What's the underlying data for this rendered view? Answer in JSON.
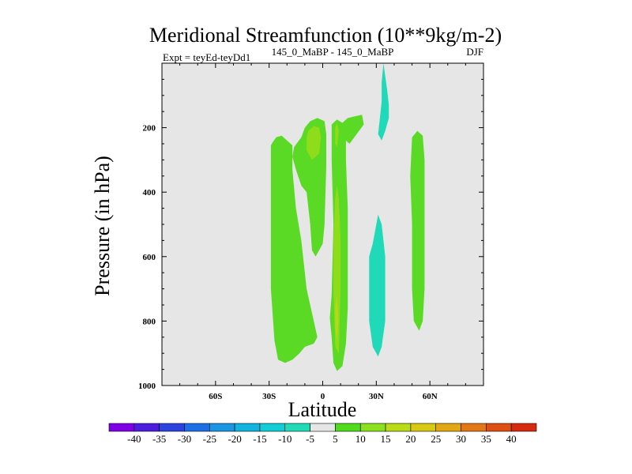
{
  "chart_data": {
    "type": "contour",
    "title": "Meridional Streamfunction (10**9kg/m-2)",
    "subtitle_left": "Expt = teyEd-teyDd1",
    "subtitle_center": "145_0_MaBP - 145_0_MaBP",
    "subtitle_right": "DJF",
    "xlabel": "Latitude",
    "ylabel": "Pressure (in hPa)",
    "xlim": [
      -90,
      90
    ],
    "ylim": [
      1000,
      0
    ],
    "x_ticks": [
      {
        "value": -60,
        "label": "60S"
      },
      {
        "value": -30,
        "label": "30S"
      },
      {
        "value": 0,
        "label": "0"
      },
      {
        "value": 30,
        "label": "30N"
      },
      {
        "value": 60,
        "label": "60N"
      }
    ],
    "y_ticks": [
      {
        "value": 200,
        "label": "200"
      },
      {
        "value": 400,
        "label": "400"
      },
      {
        "value": 600,
        "label": "600"
      },
      {
        "value": 800,
        "label": "800"
      },
      {
        "value": 1000,
        "label": "1000"
      }
    ],
    "background_color": "#e6e6e6",
    "colorbar": {
      "levels": [
        "-40",
        "-35",
        "-30",
        "-25",
        "-20",
        "-15",
        "-10",
        "-5",
        "5",
        "10",
        "15",
        "20",
        "25",
        "30",
        "35",
        "40"
      ],
      "colors": [
        "#7f00e6",
        "#4c1ddc",
        "#2d43e0",
        "#1e6ee6",
        "#1b96e3",
        "#11b4de",
        "#10cdd6",
        "#1fdbb8",
        "#e6e6e6",
        "#50dc1c",
        "#8de01d",
        "#b9dc16",
        "#d8c913",
        "#e3a714",
        "#e37816",
        "#dd4f12",
        "#d62b0e"
      ]
    },
    "regions": [
      {
        "name": "sh-green-cell",
        "color": "#5ad925",
        "points": [
          [
            -29,
            255
          ],
          [
            -28,
            245
          ],
          [
            -26,
            230
          ],
          [
            -23,
            225
          ],
          [
            -20,
            240
          ],
          [
            -17,
            255
          ],
          [
            -17,
            330
          ],
          [
            -15,
            450
          ],
          [
            -12,
            550
          ],
          [
            -9,
            700
          ],
          [
            -5,
            800
          ],
          [
            -3,
            850
          ],
          [
            -5,
            870
          ],
          [
            -10,
            880
          ],
          [
            -13,
            900
          ],
          [
            -17,
            920
          ],
          [
            -21,
            930
          ],
          [
            -25,
            920
          ],
          [
            -27,
            860
          ],
          [
            -29,
            700
          ],
          [
            -29,
            500
          ],
          [
            -29,
            350
          ]
        ]
      },
      {
        "name": "sh-upper-green-cell",
        "color": "#5ad925",
        "points": [
          [
            -12,
            230
          ],
          [
            -10,
            200
          ],
          [
            -7,
            180
          ],
          [
            -3,
            170
          ],
          [
            1,
            180
          ],
          [
            2,
            220
          ],
          [
            2,
            320
          ],
          [
            1,
            500
          ],
          [
            0,
            560
          ],
          [
            -4,
            600
          ],
          [
            -6,
            580
          ],
          [
            -7,
            500
          ],
          [
            -9,
            400
          ],
          [
            -12,
            380
          ],
          [
            -15,
            330
          ],
          [
            -17,
            290
          ],
          [
            -16,
            260
          ],
          [
            -14,
            245
          ]
        ]
      },
      {
        "name": "sh-yellowgreen-core",
        "color": "#8fdd1a",
        "points": [
          [
            -8,
            210
          ],
          [
            -5,
            195
          ],
          [
            -2,
            200
          ],
          [
            -1,
            230
          ],
          [
            -2,
            280
          ],
          [
            -6,
            300
          ],
          [
            -9,
            270
          ],
          [
            -9,
            230
          ]
        ]
      },
      {
        "name": "eq-green-cell",
        "color": "#5ad925",
        "points": [
          [
            5,
            190
          ],
          [
            8,
            175
          ],
          [
            11,
            185
          ],
          [
            13,
            220
          ],
          [
            13,
            300
          ],
          [
            14,
            450
          ],
          [
            14,
            650
          ],
          [
            14,
            760
          ],
          [
            13,
            870
          ],
          [
            11,
            940
          ],
          [
            8,
            955
          ],
          [
            6,
            930
          ],
          [
            5,
            850
          ],
          [
            4,
            790
          ],
          [
            5,
            720
          ],
          [
            6,
            500
          ],
          [
            5,
            300
          ]
        ]
      },
      {
        "name": "eq-nh-green-arm",
        "color": "#5ad925",
        "points": [
          [
            11,
            185
          ],
          [
            14,
            170
          ],
          [
            18,
            165
          ],
          [
            22,
            160
          ],
          [
            23,
            190
          ],
          [
            19,
            220
          ],
          [
            15,
            250
          ],
          [
            13,
            240
          ]
        ]
      },
      {
        "name": "eq-yellowgreen-core",
        "color": "#8fdd1a",
        "points": [
          [
            7,
            200
          ],
          [
            8,
            185
          ],
          [
            9,
            210
          ],
          [
            8,
            260
          ],
          [
            7,
            250
          ]
        ]
      },
      {
        "name": "eq-yellowgreen-lower",
        "color": "#8fdd1a",
        "points": [
          [
            7,
            420
          ],
          [
            8,
            380
          ],
          [
            9,
            420
          ],
          [
            10,
            550
          ],
          [
            10,
            700
          ],
          [
            9,
            900
          ],
          [
            7,
            880
          ],
          [
            6,
            700
          ],
          [
            6,
            550
          ]
        ]
      },
      {
        "name": "eq-yellow-sliver",
        "color": "#b4d91c",
        "points": [
          [
            7,
            760
          ],
          [
            8,
            720
          ],
          [
            8.8,
            800
          ],
          [
            8,
            860
          ],
          [
            7,
            820
          ]
        ]
      },
      {
        "name": "nh-cyan-upper",
        "color": "#1fd9b8",
        "points": [
          [
            34,
            0
          ],
          [
            35,
            40
          ],
          [
            36,
            80
          ],
          [
            37,
            130
          ],
          [
            37,
            170
          ],
          [
            35,
            210
          ],
          [
            33,
            240
          ],
          [
            31,
            220
          ],
          [
            32,
            170
          ],
          [
            33,
            120
          ],
          [
            33,
            60
          ]
        ]
      },
      {
        "name": "nh-cyan-lower",
        "color": "#1fd9b8",
        "points": [
          [
            31,
            470
          ],
          [
            33,
            500
          ],
          [
            35,
            600
          ],
          [
            35,
            800
          ],
          [
            33,
            880
          ],
          [
            31,
            910
          ],
          [
            28,
            880
          ],
          [
            26,
            800
          ],
          [
            26,
            700
          ],
          [
            26,
            600
          ],
          [
            28,
            560
          ]
        ]
      },
      {
        "name": "nh-green-cell",
        "color": "#5ad925",
        "points": [
          [
            50,
            230
          ],
          [
            53,
            210
          ],
          [
            56,
            225
          ],
          [
            57,
            300
          ],
          [
            57,
            500
          ],
          [
            57,
            700
          ],
          [
            56,
            800
          ],
          [
            54,
            830
          ],
          [
            51,
            800
          ],
          [
            50,
            700
          ],
          [
            50,
            500
          ],
          [
            49,
            350
          ]
        ]
      }
    ]
  }
}
